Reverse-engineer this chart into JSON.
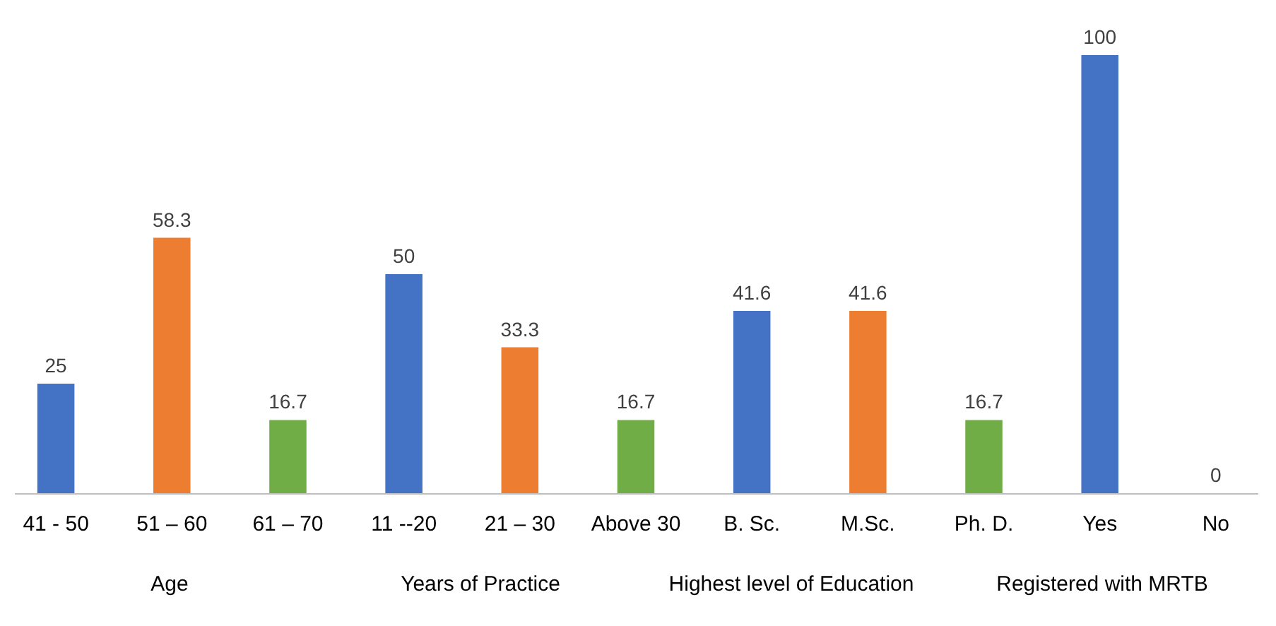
{
  "chart_data": {
    "type": "bar",
    "categories": [
      "41 - 50",
      "51 – 60",
      "61 – 70",
      "11 --20",
      "21 – 30",
      "Above 30",
      "B. Sc.",
      "M.Sc.",
      "Ph. D.",
      "Yes",
      "No"
    ],
    "values": [
      25,
      58.3,
      16.7,
      50,
      33.3,
      16.7,
      41.6,
      41.6,
      16.7,
      100,
      0
    ],
    "colors": [
      "#4472c4",
      "#ed7d31",
      "#70ad47",
      "#4472c4",
      "#ed7d31",
      "#70ad47",
      "#4472c4",
      "#ed7d31",
      "#70ad47",
      "#4472c4",
      "#4472c4"
    ],
    "data_labels": true,
    "annotations": [
      "Age",
      "Years of Practice",
      "Highest level of Education",
      "Registered with MRTB"
    ]
  }
}
